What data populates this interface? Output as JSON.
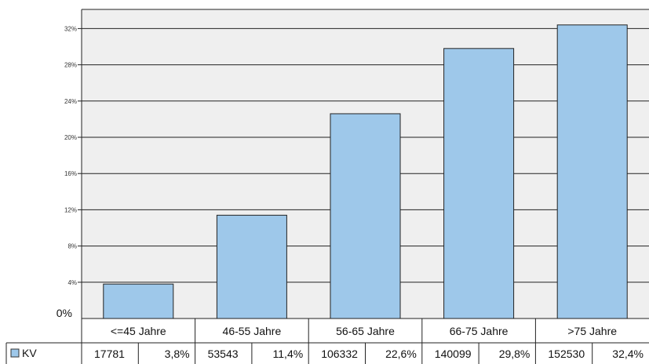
{
  "chart_data": {
    "type": "bar",
    "categories": [
      "<=45 Jahre",
      "46-55 Jahre",
      "56-65 Jahre",
      "66-75 Jahre",
      ">75 Jahre"
    ],
    "series": [
      {
        "name": "KV",
        "values": [
          3.8,
          11.4,
          22.6,
          29.8,
          32.4
        ],
        "counts": [
          "17781",
          "53543",
          "106332",
          "140099",
          "152530"
        ],
        "percent_labels": [
          "3,8%",
          "11,4%",
          "22,6%",
          "29,8%",
          "32,4%"
        ]
      }
    ],
    "y_ticks": [
      "0%",
      "4%",
      "8%",
      "12%",
      "16%",
      "20%",
      "24%",
      "28%",
      "32%"
    ],
    "ylim": [
      0,
      36
    ],
    "grid": true,
    "colors": {
      "bar": "#9ec8ea",
      "bar_stroke": "#222222",
      "plot_bg": "#efefef",
      "grid": "#222222"
    }
  }
}
